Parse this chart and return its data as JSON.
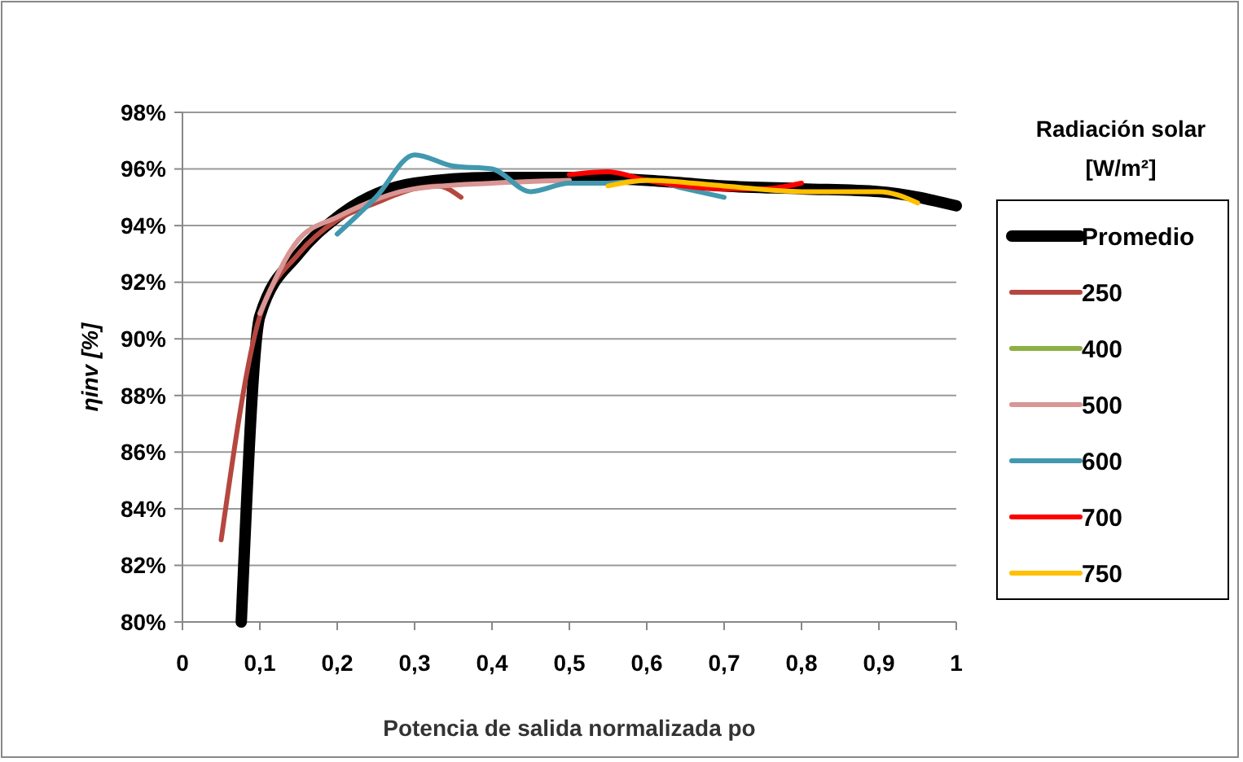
{
  "chart_data": {
    "type": "line",
    "xlabel": "Potencia de salida normalizada po",
    "ylabel": "ηinv [%]",
    "legend_title": "Radiación solar [W/m²]",
    "legend": "right",
    "grid": "y",
    "marker": "none",
    "line_style": "solid",
    "xlim": [
      0,
      1
    ],
    "xticks": [
      0,
      {
        "value": 0.1,
        "label": "0,1"
      },
      {
        "value": 0.2,
        "label": "0,2"
      },
      {
        "value": 0.3,
        "label": "0,3"
      },
      {
        "value": 0.4,
        "label": "0,4"
      },
      {
        "value": 0.5,
        "label": "0,5"
      },
      {
        "value": 0.6,
        "label": "0,6"
      },
      {
        "value": 0.7,
        "label": "0,7"
      },
      {
        "value": 0.8,
        "label": "0,8"
      },
      {
        "value": 0.9,
        "label": "0,9"
      },
      1
    ],
    "ylim": [
      80,
      98
    ],
    "yticks": [
      {
        "value": 80,
        "label": "80%"
      },
      {
        "value": 82,
        "label": "82%"
      },
      {
        "value": 84,
        "label": "84%"
      },
      {
        "value": 86,
        "label": "86%"
      },
      {
        "value": 88,
        "label": "88%"
      },
      {
        "value": 90,
        "label": "90%"
      },
      {
        "value": 92,
        "label": "92%"
      },
      {
        "value": 94,
        "label": "94%"
      },
      {
        "value": 96,
        "label": "96%"
      },
      {
        "value": 98,
        "label": "98%"
      }
    ],
    "series": [
      {
        "name": "Promedio",
        "color": "#000000",
        "x": [
          0.076,
          0.1,
          0.15,
          0.2,
          0.3,
          0.4,
          0.5,
          0.6,
          0.7,
          0.8,
          0.9,
          1.0
        ],
        "values": [
          80,
          90.8,
          93,
          94.3,
          95.5,
          95.7,
          95.7,
          95.6,
          95.4,
          95.3,
          95.2,
          94.7
        ]
      },
      {
        "name": "250",
        "color": "#b5473f",
        "x": [
          0.05,
          0.1,
          0.15,
          0.2,
          0.25,
          0.3,
          0.33,
          0.36
        ],
        "values": [
          82.9,
          90.8,
          93,
          94.2,
          94.8,
          95.3,
          95.4,
          95.0
        ]
      },
      {
        "name": "400",
        "color": "#8cb043"
      },
      {
        "name": "500",
        "color": "#d99694",
        "x": [
          0.1,
          0.15,
          0.2,
          0.3,
          0.4,
          0.5
        ],
        "values": [
          90.9,
          93.5,
          94.3,
          95.3,
          95.5,
          95.6
        ]
      },
      {
        "name": "600",
        "color": "#4198af",
        "x": [
          0.2,
          0.25,
          0.3,
          0.35,
          0.4,
          0.45,
          0.5,
          0.55,
          0.6,
          0.65,
          0.7
        ],
        "values": [
          93.7,
          95.0,
          96.5,
          96.1,
          96.0,
          95.2,
          95.5,
          95.5,
          95.6,
          95.3,
          95.0
        ]
      },
      {
        "name": "700",
        "color": "#ff0000",
        "x": [
          0.5,
          0.55,
          0.6,
          0.7,
          0.75,
          0.8
        ],
        "values": [
          95.8,
          95.9,
          95.6,
          95.3,
          95.3,
          95.5
        ]
      },
      {
        "name": "750",
        "color": "#ffc000",
        "x": [
          0.55,
          0.6,
          0.7,
          0.8,
          0.9,
          0.95
        ],
        "values": [
          95.4,
          95.6,
          95.4,
          95.2,
          95.2,
          94.8
        ]
      }
    ]
  }
}
